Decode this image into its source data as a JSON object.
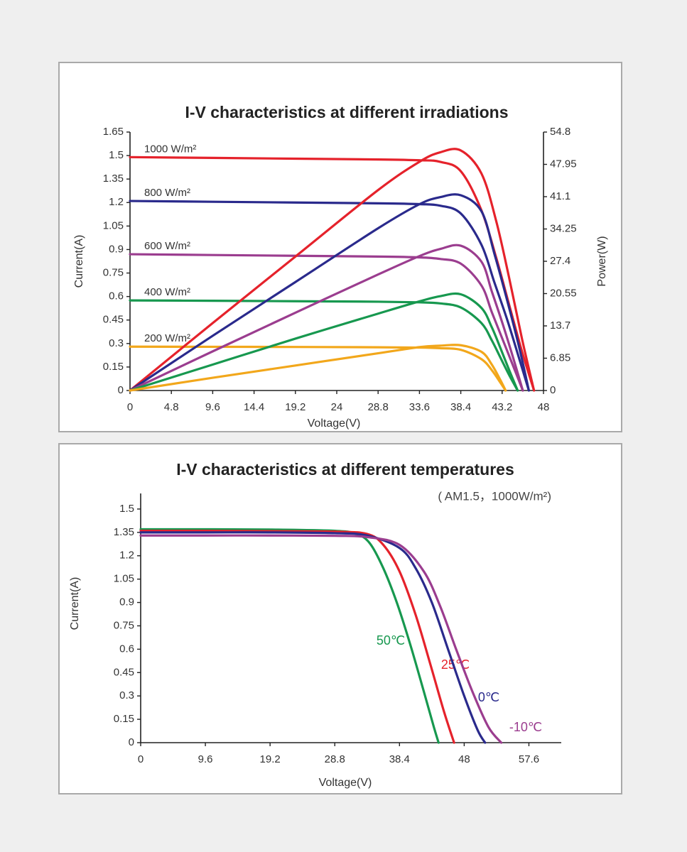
{
  "chart_data": [
    {
      "type": "line",
      "title": "I-V characteristics at different irradiations",
      "x_label": "Voltage(V)",
      "y_label": "Current(A)",
      "y2_label": "Power(W)",
      "xlim": [
        0,
        48
      ],
      "xticks": [
        0,
        4.8,
        9.6,
        14.4,
        19.2,
        24,
        28.8,
        33.6,
        38.4,
        43.2,
        48
      ],
      "ylim": [
        0,
        1.65
      ],
      "yticks": [
        0,
        0.15,
        0.3,
        0.45,
        0.6,
        0.75,
        0.9,
        1.05,
        1.2,
        1.35,
        1.5,
        1.65
      ],
      "y2lim": [
        0,
        54.8
      ],
      "y2ticks": [
        0,
        6.85,
        13.7,
        20.55,
        27.4,
        34.25,
        41.1,
        47.95,
        54.8
      ],
      "series": [
        {
          "name": "1000 W/m²",
          "color": "#e5222b",
          "x": [
            0,
            9.6,
            19.2,
            28.8,
            33.6,
            36,
            38.4,
            40.8,
            42.5,
            44,
            45.5,
            46.9
          ],
          "values": [
            1.49,
            1.485,
            1.48,
            1.475,
            1.47,
            1.46,
            1.4,
            1.15,
            0.85,
            0.55,
            0.25,
            0
          ]
        },
        {
          "name": "800 W/m²",
          "color": "#2a2a8c",
          "x": [
            0,
            9.6,
            19.2,
            28.8,
            33.6,
            36,
            38.4,
            40.8,
            42.3,
            43.8,
            45.2,
            46.3
          ],
          "values": [
            1.21,
            1.205,
            1.2,
            1.195,
            1.19,
            1.18,
            1.13,
            0.93,
            0.69,
            0.45,
            0.2,
            0
          ]
        },
        {
          "name": "600 W/m²",
          "color": "#9b3d8f",
          "x": [
            0,
            9.6,
            19.2,
            28.8,
            33.6,
            36,
            38.4,
            40.8,
            42,
            43.3,
            44.6,
            45.6
          ],
          "values": [
            0.87,
            0.865,
            0.86,
            0.855,
            0.85,
            0.84,
            0.81,
            0.67,
            0.5,
            0.32,
            0.14,
            0
          ]
        },
        {
          "name": "400 W/m²",
          "color": "#17984f",
          "x": [
            0,
            9.6,
            19.2,
            28.8,
            33.6,
            36,
            38.4,
            40.8,
            42,
            43,
            44,
            45
          ],
          "values": [
            0.575,
            0.573,
            0.57,
            0.567,
            0.563,
            0.556,
            0.53,
            0.43,
            0.32,
            0.21,
            0.1,
            0
          ]
        },
        {
          "name": "200 W/m²",
          "color": "#f2a71b",
          "x": [
            0,
            9.6,
            19.2,
            28.8,
            33.6,
            36,
            38.4,
            40.8,
            42,
            43,
            43.6
          ],
          "values": [
            0.28,
            0.279,
            0.278,
            0.276,
            0.274,
            0.27,
            0.26,
            0.2,
            0.13,
            0.05,
            0
          ]
        },
        {
          "color": "#e5222b",
          "axis": "y2",
          "x": [
            0,
            9.6,
            19.2,
            28.8,
            33.6,
            36,
            38.4,
            40.8,
            42.5,
            44,
            45.5,
            46.9
          ],
          "values": [
            0,
            14.3,
            28.4,
            42.5,
            48.5,
            50.5,
            50.9,
            46,
            36,
            24,
            11,
            0
          ]
        },
        {
          "color": "#2a2a8c",
          "axis": "y2",
          "x": [
            0,
            9.6,
            19.2,
            28.8,
            33.6,
            36,
            38.4,
            40.8,
            42.3,
            43.8,
            45.2,
            46.3
          ],
          "values": [
            0,
            11.6,
            23,
            34.4,
            39.5,
            41,
            41.4,
            38,
            29,
            19,
            9,
            0
          ]
        },
        {
          "color": "#9b3d8f",
          "axis": "y2",
          "x": [
            0,
            9.6,
            19.2,
            28.8,
            33.6,
            36,
            38.4,
            40.8,
            42,
            43.3,
            44.6,
            45.6
          ],
          "values": [
            0,
            8.3,
            16.5,
            24.6,
            28.5,
            30,
            30.7,
            27.3,
            21,
            13.9,
            6.2,
            0
          ]
        },
        {
          "color": "#17984f",
          "axis": "y2",
          "x": [
            0,
            9.6,
            19.2,
            28.8,
            33.6,
            36,
            38.4,
            40.8,
            42,
            43,
            44,
            45
          ],
          "values": [
            0,
            5.5,
            11,
            16.3,
            18.9,
            20,
            20.4,
            17.5,
            13.4,
            9,
            4.4,
            0
          ]
        },
        {
          "color": "#f2a71b",
          "axis": "y2",
          "x": [
            0,
            9.6,
            19.2,
            28.8,
            33.6,
            36,
            38.4,
            40.8,
            42,
            43,
            43.6
          ],
          "values": [
            0,
            2.7,
            5.3,
            7.9,
            9.2,
            9.5,
            9.6,
            8.2,
            5.5,
            2.2,
            0
          ]
        }
      ]
    },
    {
      "type": "line",
      "title": "I-V characteristics at different temperatures",
      "subtitle": "( AM1.5，1000W/m²)",
      "x_label": "Voltage(V)",
      "y_label": "Current(A)",
      "xlim": [
        0,
        62.4
      ],
      "xticks": [
        0,
        9.6,
        19.2,
        28.8,
        38.4,
        48,
        57.6
      ],
      "ylim": [
        0,
        1.6
      ],
      "yticks": [
        0,
        0.15,
        0.3,
        0.45,
        0.6,
        0.75,
        0.9,
        1.05,
        1.2,
        1.35,
        1.5
      ],
      "series": [
        {
          "name": "50℃",
          "color": "#17984f",
          "x": [
            0,
            9.6,
            19.2,
            28.8,
            32,
            34,
            36,
            38,
            40,
            42,
            43.5,
            44.2
          ],
          "values": [
            1.37,
            1.37,
            1.368,
            1.36,
            1.34,
            1.28,
            1.12,
            0.9,
            0.63,
            0.33,
            0.1,
            0
          ]
        },
        {
          "name": "25℃",
          "color": "#e5222b",
          "x": [
            0,
            9.6,
            19.2,
            28.8,
            33.6,
            36,
            38.4,
            40.8,
            43,
            45,
            46.5
          ],
          "values": [
            1.36,
            1.36,
            1.358,
            1.355,
            1.34,
            1.27,
            1.1,
            0.82,
            0.5,
            0.2,
            0
          ]
        },
        {
          "name": "0℃",
          "color": "#2a2a8c",
          "x": [
            0,
            9.6,
            19.2,
            28.8,
            33.6,
            38.4,
            40.8,
            43.2,
            45.6,
            48,
            50,
            51.1
          ],
          "values": [
            1.35,
            1.35,
            1.35,
            1.345,
            1.33,
            1.25,
            1.12,
            0.9,
            0.6,
            0.3,
            0.08,
            0
          ]
        },
        {
          "name": "-10℃",
          "color": "#9b3d8f",
          "x": [
            0,
            9.6,
            19.2,
            28.8,
            33.6,
            38.4,
            42,
            44.4,
            46.8,
            49.2,
            51.6,
            53.5
          ],
          "values": [
            1.33,
            1.33,
            1.33,
            1.328,
            1.32,
            1.27,
            1.1,
            0.88,
            0.6,
            0.33,
            0.1,
            0
          ]
        }
      ]
    }
  ]
}
